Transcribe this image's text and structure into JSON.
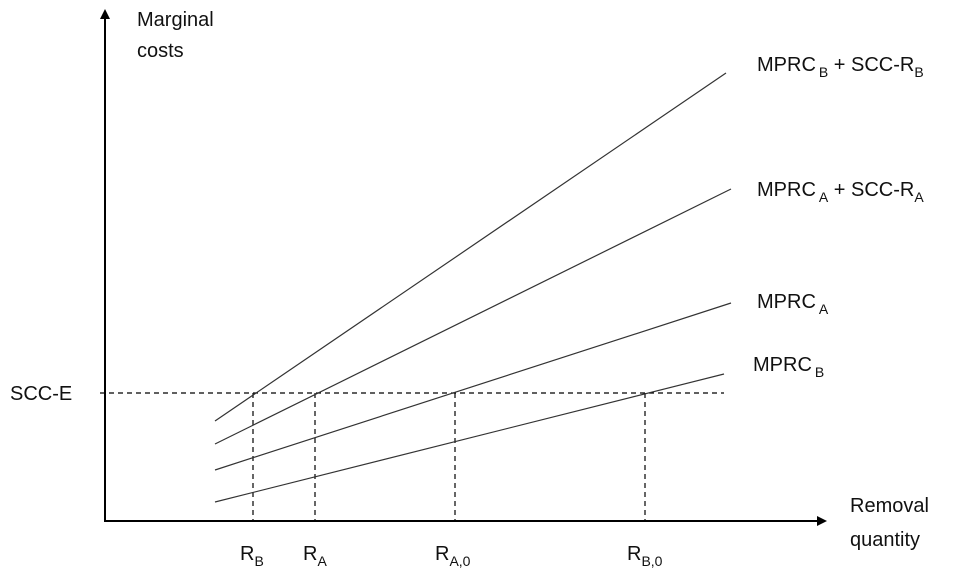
{
  "axes": {
    "y_label_line1": "Marginal",
    "y_label_line2": "costs",
    "x_label_line1": "Removal",
    "x_label_line2": "quantity"
  },
  "threshold": {
    "label": "SCC-E"
  },
  "curves": [
    {
      "id": "mprc-b-plus-scc-rb",
      "main": "MPRC",
      "main_sub": "B",
      "plus": " + SCC-R",
      "plus_sub": "B"
    },
    {
      "id": "mprc-a-plus-scc-ra",
      "main": "MPRC",
      "main_sub": "A",
      "plus": " + SCC-R",
      "plus_sub": "A"
    },
    {
      "id": "mprc-a",
      "main": "MPRC",
      "main_sub": "A",
      "plus": "",
      "plus_sub": ""
    },
    {
      "id": "mprc-b",
      "main": "MPRC",
      "main_sub": "B",
      "plus": "",
      "plus_sub": ""
    }
  ],
  "x_markers": [
    {
      "id": "rb",
      "main": "R",
      "sub": "B"
    },
    {
      "id": "ra",
      "main": "R",
      "sub": "A"
    },
    {
      "id": "ra0",
      "main": "R",
      "sub": "A,0"
    },
    {
      "id": "rb0",
      "main": "R",
      "sub": "B,0"
    }
  ]
}
